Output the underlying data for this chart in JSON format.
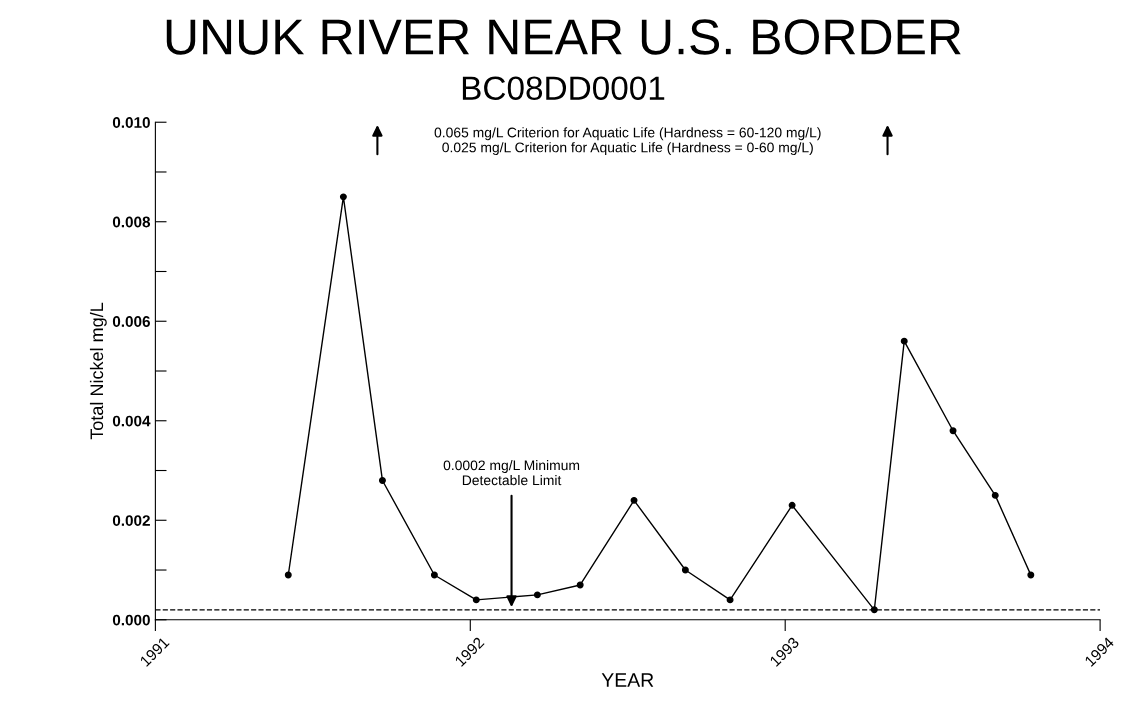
{
  "chart_data": {
    "type": "line",
    "title": "UNUK RIVER NEAR U.S. BORDER",
    "subtitle": "BC08DD0001",
    "xlabel": "YEAR",
    "ylabel": "Total Nickel mg/L",
    "x": [
      1991.422,
      1991.597,
      1991.721,
      1991.886,
      1992.019,
      1992.213,
      1992.349,
      1992.52,
      1992.683,
      1992.825,
      1993.022,
      1993.283,
      1993.378,
      1993.533,
      1993.667,
      1993.78
    ],
    "values": [
      0.0009,
      0.0085,
      0.0028,
      0.0009,
      0.0004,
      0.0005,
      0.0007,
      0.0024,
      0.001,
      0.0004,
      0.0023,
      0.0002,
      0.0056,
      0.0038,
      0.0025,
      0.0009
    ],
    "color": "#000000",
    "marker": "circle",
    "line_style": "solid",
    "grid": false,
    "xlim": [
      1991,
      1994
    ],
    "xticks": [
      1991,
      1992,
      1993,
      1994
    ],
    "ylim": [
      0,
      0.01
    ],
    "yticks": [
      {
        "value": 0,
        "label": "0.000"
      },
      {
        "value": 0.001,
        "label": null
      },
      {
        "value": 0.002,
        "label": "0.002"
      },
      {
        "value": 0.003,
        "label": null
      },
      {
        "value": 0.004,
        "label": "0.004"
      },
      {
        "value": 0.005,
        "label": null
      },
      {
        "value": 0.006,
        "label": "0.006"
      },
      {
        "value": 0.007,
        "label": null
      },
      {
        "value": 0.008,
        "label": "0.008"
      },
      {
        "value": 0.009,
        "label": null
      },
      {
        "value": 0.01,
        "label": "0.010"
      }
    ],
    "ref_lines": [
      {
        "axis": "y",
        "value": 0.0002,
        "line_style": "dashed",
        "color": "#000000"
      }
    ],
    "annotations": [
      "0.065 mg/L Criterion for Aquatic Life (Hardness = 60-120 mg/L)",
      "0.025 mg/L Criterion for Aquatic Life (Hardness = 0-60 mg/L)",
      "0.0002 mg/L Minimum\nDetectable Limit"
    ]
  }
}
